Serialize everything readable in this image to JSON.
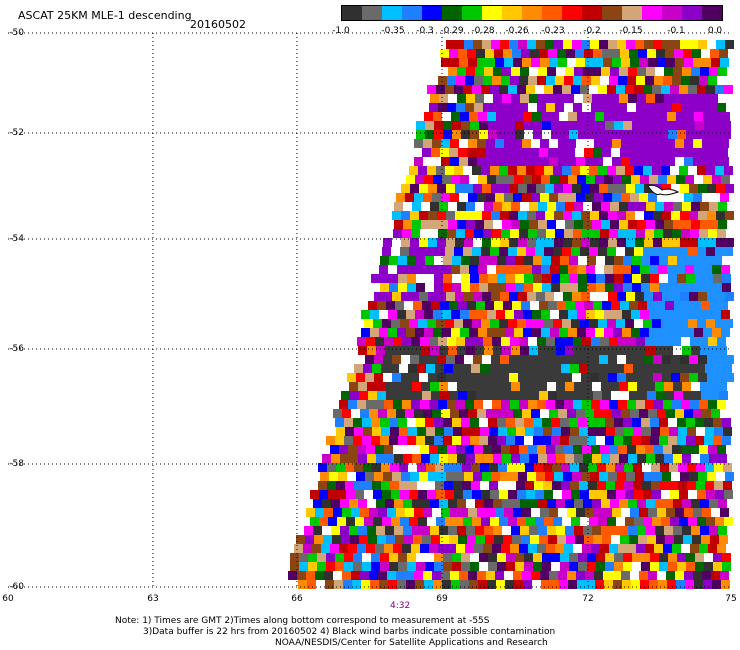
{
  "title": "ASCAT 25KM MLE-1 descending",
  "date": "20160502",
  "colorbar": {
    "colors": [
      "#303030",
      "#6a6a6a",
      "#00bfff",
      "#1e7fff",
      "#0000ff",
      "#006400",
      "#00c800",
      "#ffff00",
      "#ffc800",
      "#ff8c00",
      "#ff5a00",
      "#ff0000",
      "#c00000",
      "#8b4513",
      "#d2a679",
      "#ff00ff",
      "#c800c8",
      "#8c00c8",
      "#500060"
    ],
    "labels": [
      "-1.0",
      "-0.35",
      "-0.3",
      "-0.29",
      "-0.28",
      "-0.26",
      "-0.23",
      "-0.2",
      "-0.15",
      "-0.1",
      "0.0"
    ]
  },
  "map": {
    "lat_labels": [
      "-50",
      "-52",
      "-54",
      "-56",
      "-58",
      "-60"
    ],
    "lon_labels": [
      "60",
      "63",
      "66",
      "69",
      "72",
      "75"
    ]
  },
  "time_label": "4:32",
  "notes": [
    "Note: 1) Times are GMT 2)Times along bottom correspond to measurement at -55S",
    "3)Data buffer is 22 hrs from 20160502 4) Black wind barbs indicate possible contamination",
    "NOAA/NESDIS/Center for Satellite Applications and Research"
  ]
}
